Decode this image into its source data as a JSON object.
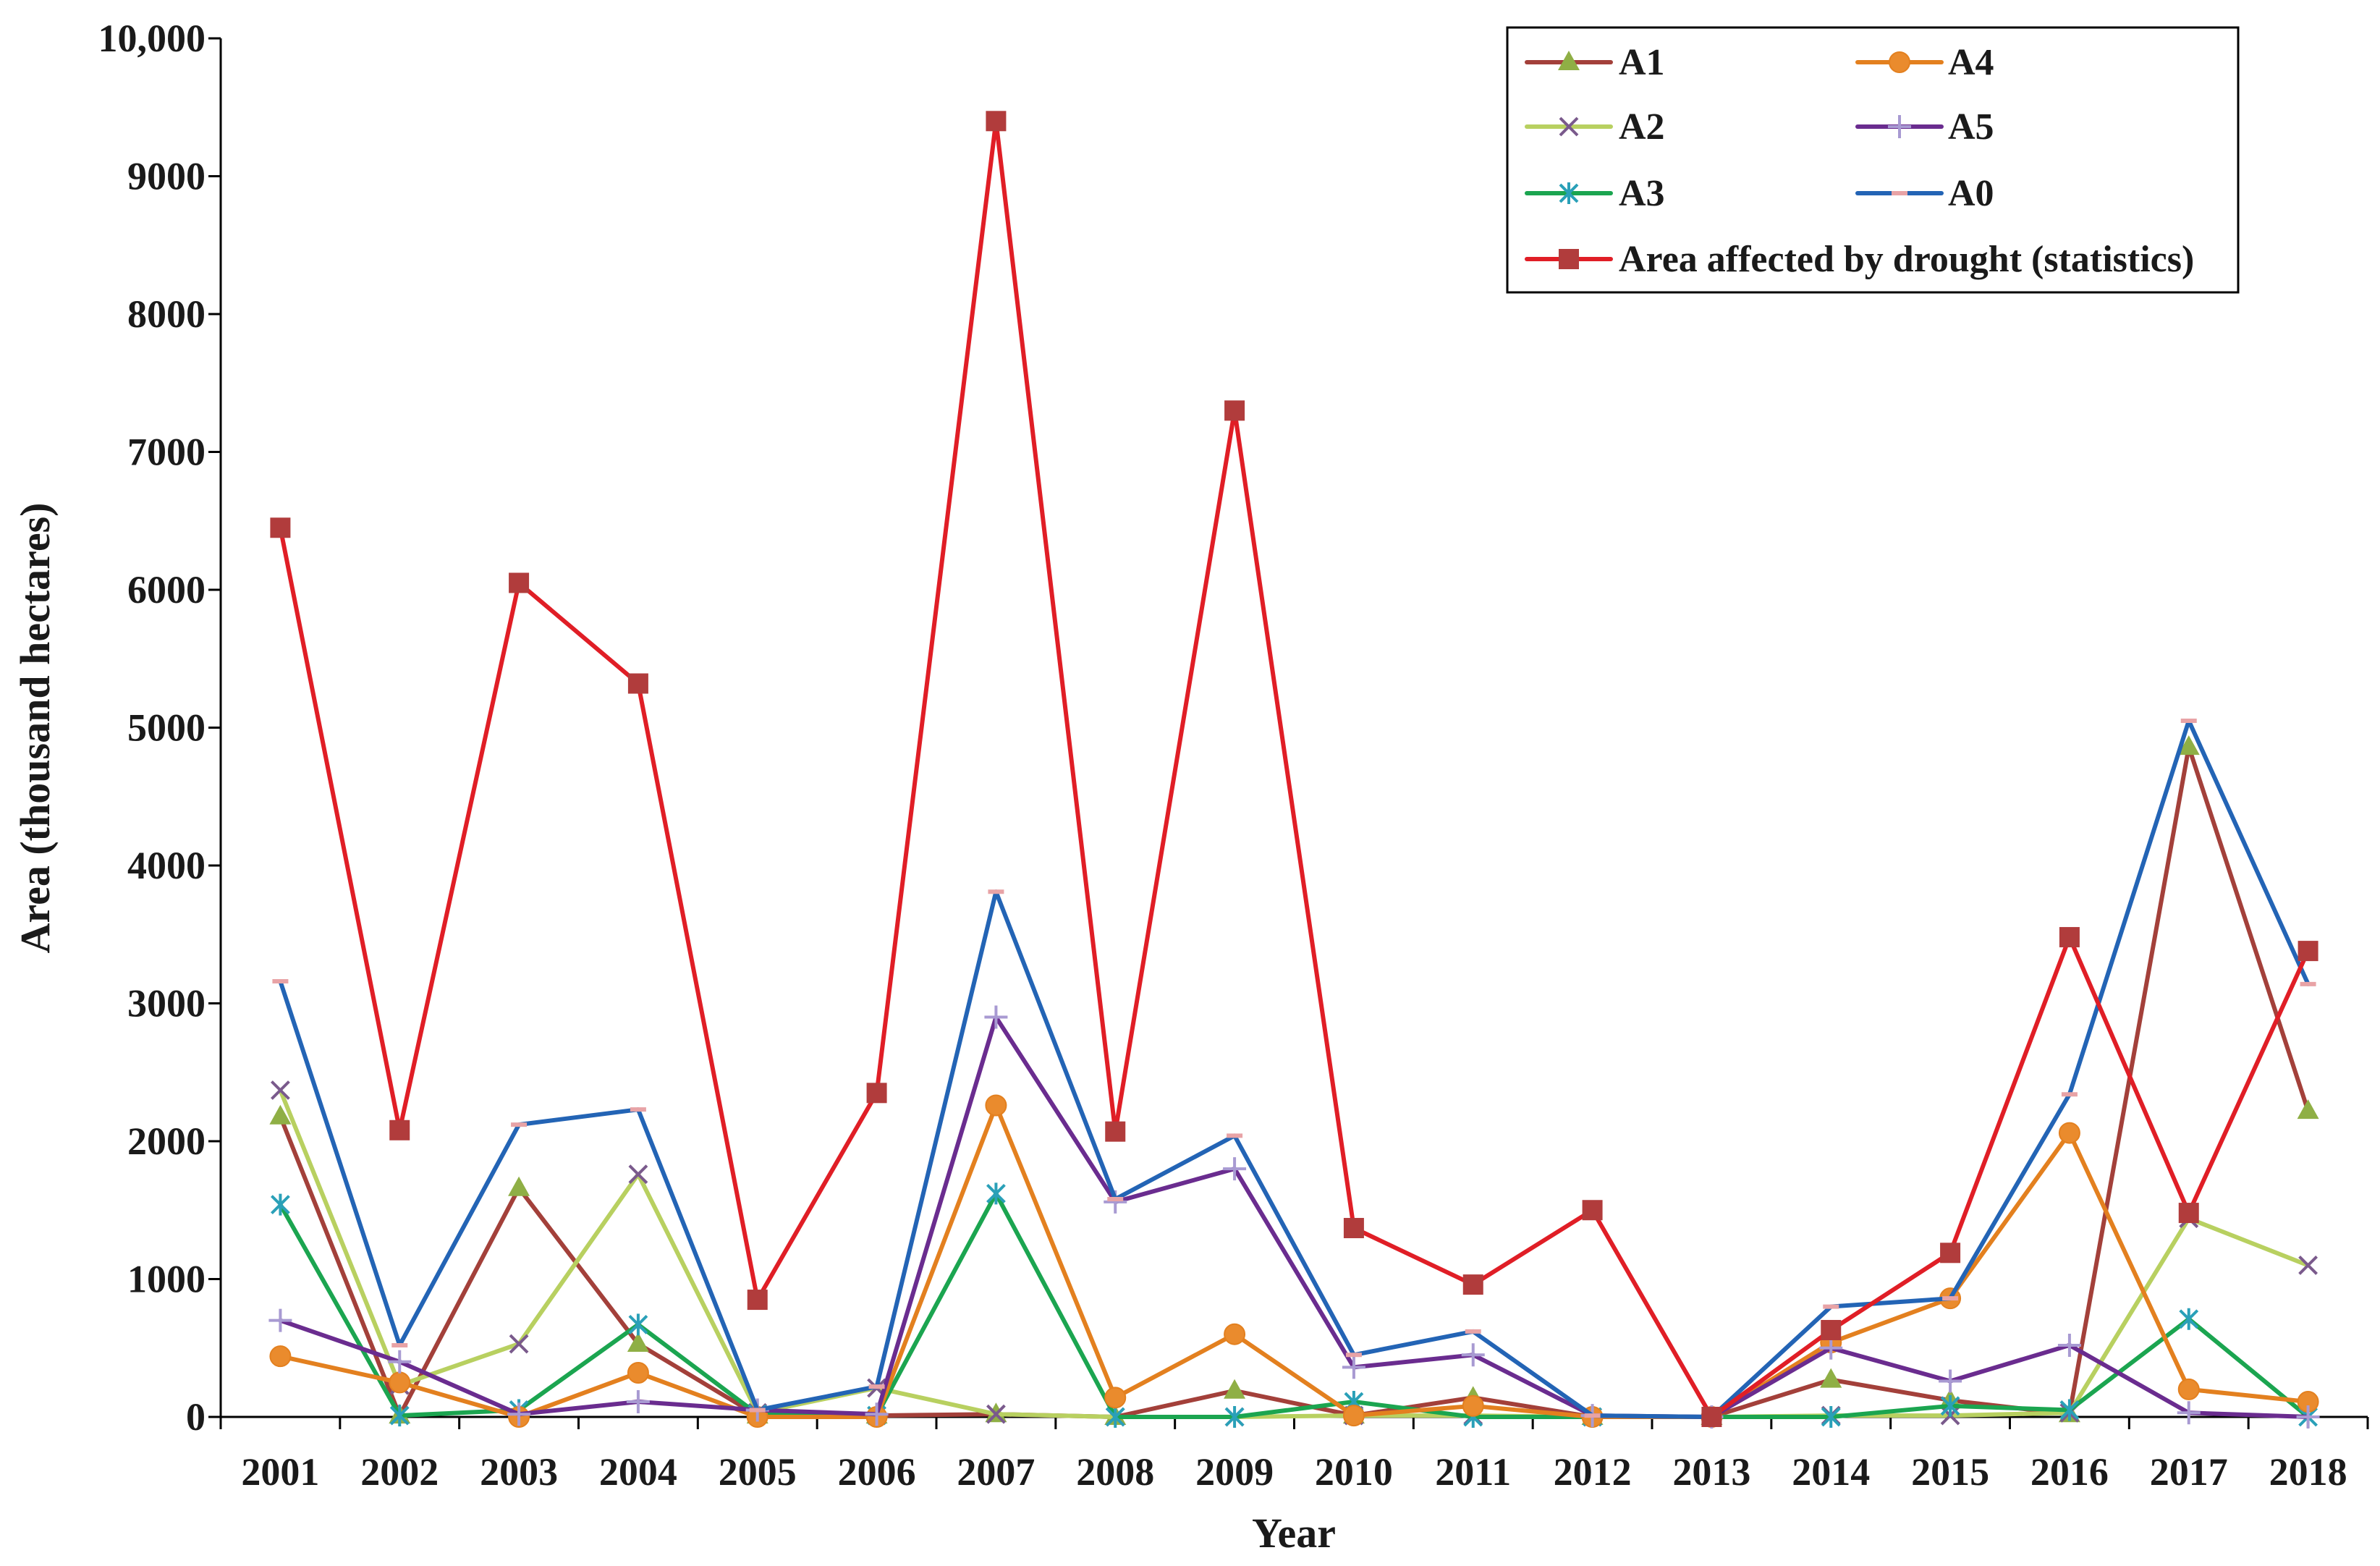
{
  "chart_data": {
    "type": "line",
    "title": "",
    "xlabel": "Year",
    "ylabel": "Area (thousand hectares)",
    "ylim": [
      0,
      10000
    ],
    "yticks": [
      0,
      1000,
      2000,
      3000,
      4000,
      5000,
      6000,
      7000,
      8000,
      9000,
      10000
    ],
    "ytick_labels": [
      "0",
      "1000",
      "2000",
      "3000",
      "4000",
      "5000",
      "6000",
      "7000",
      "8000",
      "9000",
      "10,000"
    ],
    "categories": [
      "2001",
      "2002",
      "2003",
      "2004",
      "2005",
      "2006",
      "2007",
      "2008",
      "2009",
      "2010",
      "2011",
      "2012",
      "2013",
      "2014",
      "2015",
      "2016",
      "2017",
      "2018"
    ],
    "grid": false,
    "legend_position": "top-right",
    "series": [
      {
        "name": "A1",
        "line_color": "#A3403A",
        "marker": "triangle",
        "marker_color": "#8FAF45",
        "values": [
          2180,
          10,
          1660,
          530,
          10,
          10,
          20,
          0,
          190,
          10,
          140,
          0,
          0,
          270,
          120,
          20,
          4860,
          2220
        ]
      },
      {
        "name": "A2",
        "line_color": "#B8D060",
        "marker": "x",
        "marker_color": "#7A5A8C",
        "values": [
          2370,
          230,
          530,
          1760,
          30,
          210,
          20,
          0,
          0,
          10,
          10,
          0,
          0,
          10,
          10,
          30,
          1440,
          1100
        ]
      },
      {
        "name": "A3",
        "line_color": "#1BA550",
        "marker": "asterisk",
        "marker_color": "#2AA0B8",
        "values": [
          1540,
          10,
          50,
          670,
          20,
          10,
          1620,
          0,
          0,
          110,
          0,
          0,
          0,
          0,
          80,
          50,
          710,
          0
        ]
      },
      {
        "name": "A4",
        "line_color": "#E3801F",
        "marker": "circle",
        "marker_color": "#EA8B2D",
        "values": [
          440,
          250,
          0,
          320,
          0,
          0,
          2260,
          140,
          600,
          10,
          80,
          0,
          0,
          540,
          860,
          2060,
          200,
          110
        ]
      },
      {
        "name": "A5",
        "line_color": "#6A2C8F",
        "marker": "plus",
        "marker_color": "#A89AD2",
        "values": [
          700,
          400,
          20,
          110,
          50,
          20,
          2900,
          1560,
          1800,
          360,
          450,
          10,
          0,
          500,
          260,
          520,
          30,
          0
        ]
      },
      {
        "name": "A0",
        "line_color": "#2364B5",
        "marker": "dash",
        "marker_color": "#E8A3A6",
        "values": [
          3160,
          520,
          2120,
          2230,
          50,
          220,
          3810,
          1580,
          2040,
          450,
          620,
          10,
          0,
          800,
          860,
          2340,
          5050,
          3140
        ]
      },
      {
        "name": "Area affected by drought (statistics)",
        "line_color": "#E01E26",
        "marker": "square",
        "marker_color": "#B13C3C",
        "values": [
          6450,
          2080,
          6050,
          5320,
          850,
          2350,
          9400,
          2070,
          7300,
          1370,
          960,
          1500,
          0,
          630,
          1190,
          3480,
          1480,
          3380
        ]
      }
    ]
  }
}
